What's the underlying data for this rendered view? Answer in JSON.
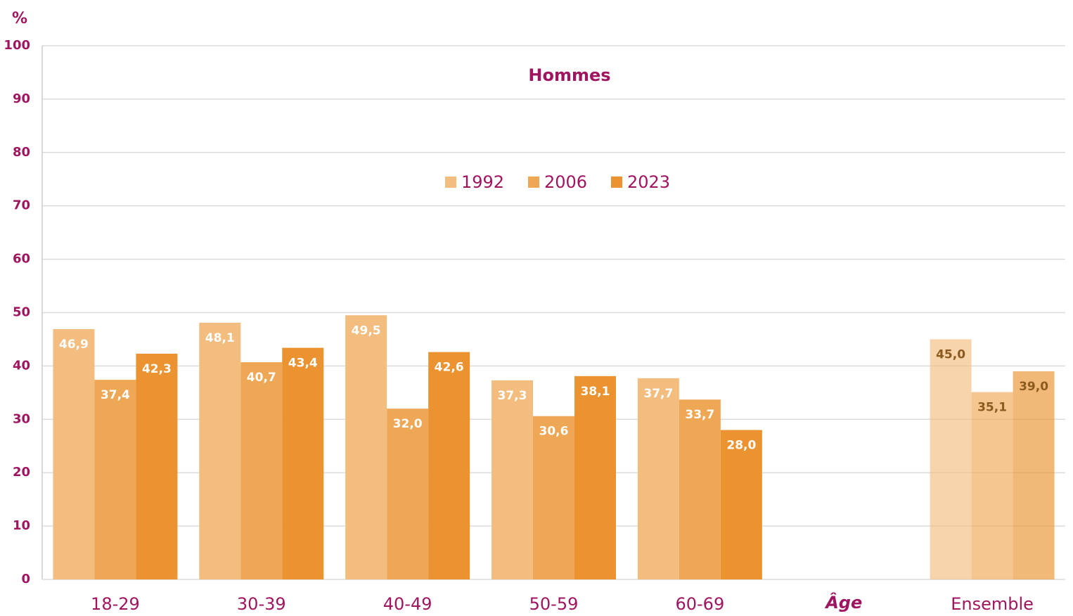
{
  "chart_data": {
    "type": "bar",
    "title": "Hommes",
    "y_label": "%",
    "x_label": "Âge",
    "categories": [
      "18-29",
      "30-39",
      "40-49",
      "50-59",
      "60-69",
      null,
      "Ensemble"
    ],
    "series": [
      {
        "name": "1992",
        "color": "#f2bd7e",
        "values": [
          46.9,
          48.1,
          49.5,
          37.3,
          37.7,
          null,
          45.0
        ],
        "value_labels": [
          "46,9",
          "48,1",
          "49,5",
          "37,3",
          "37,7",
          null,
          "45,0"
        ]
      },
      {
        "name": "2006",
        "color": "#eea855",
        "values": [
          37.4,
          40.7,
          32.0,
          30.6,
          33.7,
          null,
          35.1
        ],
        "value_labels": [
          "37,4",
          "40,7",
          "32,0",
          "30,6",
          "33,7",
          null,
          "35,1"
        ]
      },
      {
        "name": "2023",
        "color": "#ea9330",
        "values": [
          42.3,
          43.4,
          42.6,
          38.1,
          28.0,
          null,
          39.0
        ],
        "value_labels": [
          "42,3",
          "43,4",
          "42,6",
          "38,1",
          "28,0",
          null,
          "39,0"
        ]
      }
    ],
    "ylim": [
      0,
      100
    ],
    "yticks": [
      0,
      10,
      20,
      30,
      40,
      50,
      60,
      70,
      80,
      90,
      100
    ],
    "grid": true,
    "legend": "top"
  }
}
